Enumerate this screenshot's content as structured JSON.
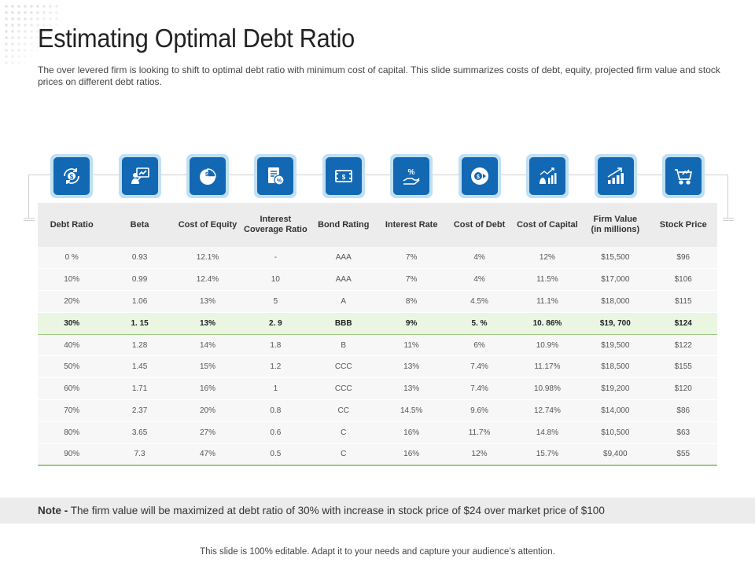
{
  "slide": {
    "title": "Estimating Optimal Debt Ratio",
    "subtitle": "The over levered firm is looking to shift to optimal debt ratio with minimum cost of capital. This slide summarizes costs of debt, equity, projected firm value and stock prices on different debt ratios.",
    "note_label": "Note -",
    "note_text": "The firm value will be maximized at debt ratio of 30% with increase in stock price of $24 over market price of $100",
    "footer": "This slide is 100% editable. Adapt it to your needs and capture your audience’s attention."
  },
  "colors": {
    "icon_fill": "#1268b3",
    "icon_frame": "#bfe0f4",
    "highlight_row": "#eaf5e2",
    "accent_green": "#9ccb80"
  },
  "icons": [
    {
      "name": "money-cycle-icon"
    },
    {
      "name": "presentation-person-icon"
    },
    {
      "name": "pie-chart-icon"
    },
    {
      "name": "percent-document-icon"
    },
    {
      "name": "money-bill-icon"
    },
    {
      "name": "percent-hand-icon"
    },
    {
      "name": "dollar-coin-arrow-icon"
    },
    {
      "name": "money-bag-chart-icon"
    },
    {
      "name": "growth-chart-icon"
    },
    {
      "name": "shopping-cart-icon"
    }
  ],
  "table": {
    "headers": [
      "Debt Ratio",
      "Beta",
      "Cost of Equity",
      "Interest\nCoverage Ratio",
      "Bond Rating",
      "Interest Rate",
      "Cost of Debt",
      "Cost of Capital",
      "Firm Value\n(in millions)",
      "Stock Price"
    ],
    "rows": [
      [
        "0 %",
        "0.93",
        "12.1%",
        "-",
        "AAA",
        "7%",
        "4%",
        "12%",
        "$15,500",
        "$96"
      ],
      [
        "10%",
        "0.99",
        "12.4%",
        "10",
        "AAA",
        "7%",
        "4%",
        "11.5%",
        "$17,000",
        "$106"
      ],
      [
        "20%",
        "1.06",
        "13%",
        "5",
        "A",
        "8%",
        "4.5%",
        "11.1%",
        "$18,000",
        "$115"
      ],
      [
        "30%",
        "1. 15",
        "13%",
        "2. 9",
        "BBB",
        "9%",
        "5. %",
        "10. 86%",
        "$19, 700",
        "$124"
      ],
      [
        "40%",
        "1.28",
        "14%",
        "1.8",
        "B",
        "11%",
        "6%",
        "10.9%",
        "$19,500",
        "$122"
      ],
      [
        "50%",
        "1.45",
        "15%",
        "1.2",
        "CCC",
        "13%",
        "7.4%",
        "11.17%",
        "$18,500",
        "$155"
      ],
      [
        "60%",
        "1.71",
        "16%",
        "1",
        "CCC",
        "13%",
        "7.4%",
        "10.98%",
        "$19,200",
        "$120"
      ],
      [
        "70%",
        "2.37",
        "20%",
        "0.8",
        "CC",
        "14.5%",
        "9.6%",
        "12.74%",
        "$14,000",
        "$86"
      ],
      [
        "80%",
        "3.65",
        "27%",
        "0.6",
        "C",
        "16%",
        "11.7%",
        "14.8%",
        "$10,500",
        "$63"
      ],
      [
        "90%",
        "7.3",
        "47%",
        "0.5",
        "C",
        "16%",
        "12%",
        "15.7%",
        "$9,400",
        "$55"
      ]
    ],
    "highlight_row_index": 3
  }
}
